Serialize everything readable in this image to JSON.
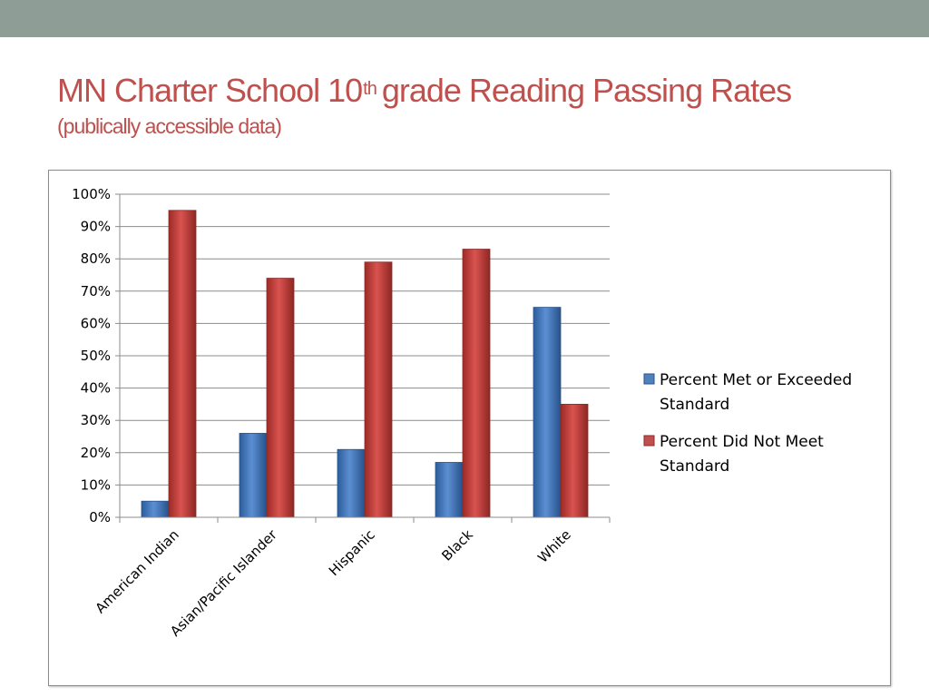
{
  "slide": {
    "title_main": "MN Charter School 10",
    "title_sup": "th",
    "title_rest": "grade Reading Passing Rates",
    "subtitle": "(publically accessible data)"
  },
  "colors": {
    "top_bar": "#8e9e96",
    "title": "#c0504d",
    "series_met": "#4f81bd",
    "series_not_met": "#c0504d"
  },
  "chart_data": {
    "type": "bar",
    "title": "",
    "xlabel": "",
    "ylabel": "",
    "categories": [
      "American Indian",
      "Asian/Pacific Islander",
      "Hispanic",
      "Black",
      "White"
    ],
    "series": [
      {
        "name": "Percent Met or Exceeded Standard",
        "values": [
          5,
          26,
          21,
          17,
          65
        ]
      },
      {
        "name": "Percent Did Not Meet Standard",
        "values": [
          95,
          74,
          79,
          83,
          35
        ]
      }
    ],
    "legend_lines": [
      [
        "Percent Met or Exceeded",
        "Standard"
      ],
      [
        "Percent Did Not Meet",
        "Standard"
      ]
    ],
    "ylim": [
      0,
      100
    ],
    "yticks": [
      "0%",
      "10%",
      "20%",
      "30%",
      "40%",
      "50%",
      "60%",
      "70%",
      "80%",
      "90%",
      "100%"
    ],
    "grid": true,
    "legend_position": "right"
  }
}
